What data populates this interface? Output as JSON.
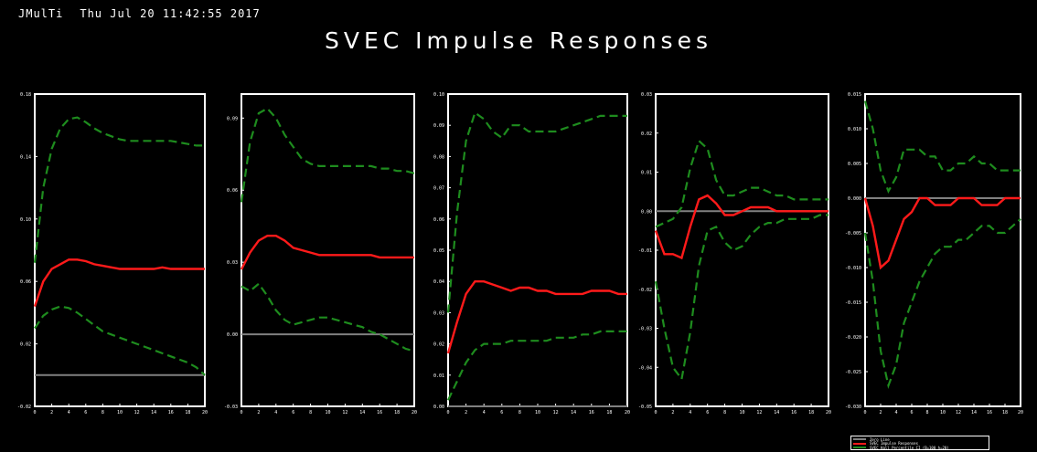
{
  "header": {
    "app": "JMulTi",
    "timestamp": "Thu Jul 20 11:42:55 2017"
  },
  "title": "SVEC Impulse Responses",
  "colors": {
    "background": "#000000",
    "frame": "#ffffff",
    "zero_line": "#808080",
    "response": "#ff1a1a",
    "ci": "#1e8c1e"
  },
  "legend": {
    "items": [
      {
        "label": "Zero Line",
        "color": "#808080"
      },
      {
        "label": "SVEC Impulse Responses",
        "color": "#ff1a1a"
      },
      {
        "label": "SVEC Hall Percentile CI (B=100 h=20)",
        "color": "#1e8c1e"
      }
    ]
  },
  "chart_data": [
    {
      "type": "line",
      "title": "",
      "x": [
        0,
        1,
        2,
        3,
        4,
        5,
        6,
        7,
        8,
        9,
        10,
        11,
        12,
        13,
        14,
        15,
        16,
        17,
        18,
        19,
        20
      ],
      "xticks": [
        "0",
        "2",
        "4",
        "6",
        "8",
        "10",
        "12",
        "14",
        "16",
        "18",
        "20"
      ],
      "ylim": [
        -0.02,
        0.18
      ],
      "yticks": [
        "-0.02",
        "0.02",
        "0.06",
        "0.10",
        "0.14",
        "0.18"
      ],
      "yticks_values": [
        -0.02,
        0.02,
        0.06,
        0.1,
        0.14,
        0.18
      ],
      "zero_line": 0,
      "response": [
        0.044,
        0.06,
        0.068,
        0.071,
        0.074,
        0.074,
        0.073,
        0.071,
        0.07,
        0.069,
        0.068,
        0.068,
        0.068,
        0.068,
        0.068,
        0.069,
        0.068,
        0.068,
        0.068,
        0.068,
        0.068
      ],
      "ci_lower": [
        0.03,
        0.038,
        0.042,
        0.044,
        0.043,
        0.04,
        0.036,
        0.032,
        0.028,
        0.026,
        0.024,
        0.022,
        0.02,
        0.018,
        0.016,
        0.014,
        0.012,
        0.01,
        0.008,
        0.005,
        0.0
      ],
      "ci_upper": [
        0.072,
        0.12,
        0.145,
        0.158,
        0.164,
        0.165,
        0.162,
        0.158,
        0.155,
        0.153,
        0.151,
        0.15,
        0.15,
        0.15,
        0.15,
        0.15,
        0.15,
        0.149,
        0.148,
        0.147,
        0.147
      ]
    },
    {
      "type": "line",
      "title": "",
      "x": [
        0,
        1,
        2,
        3,
        4,
        5,
        6,
        7,
        8,
        9,
        10,
        11,
        12,
        13,
        14,
        15,
        16,
        17,
        18,
        19,
        20
      ],
      "xticks": [
        "0",
        "2",
        "4",
        "6",
        "8",
        "10",
        "12",
        "14",
        "16",
        "18",
        "20"
      ],
      "ylim": [
        -0.03,
        0.1
      ],
      "yticks": [
        "-0.03",
        "0.00",
        "0.03",
        "0.06",
        "0.09"
      ],
      "yticks_values": [
        -0.03,
        0.0,
        0.03,
        0.06,
        0.09
      ],
      "zero_line": 0,
      "response": [
        0.027,
        0.034,
        0.039,
        0.041,
        0.041,
        0.039,
        0.036,
        0.035,
        0.034,
        0.033,
        0.033,
        0.033,
        0.033,
        0.033,
        0.033,
        0.033,
        0.032,
        0.032,
        0.032,
        0.032,
        0.032
      ],
      "ci_lower": [
        0.02,
        0.018,
        0.021,
        0.016,
        0.01,
        0.006,
        0.004,
        0.005,
        0.006,
        0.007,
        0.007,
        0.006,
        0.005,
        0.004,
        0.003,
        0.001,
        0.0,
        -0.002,
        -0.004,
        -0.006,
        -0.007
      ],
      "ci_upper": [
        0.055,
        0.08,
        0.092,
        0.094,
        0.09,
        0.083,
        0.078,
        0.073,
        0.071,
        0.07,
        0.07,
        0.07,
        0.07,
        0.07,
        0.07,
        0.07,
        0.069,
        0.069,
        0.068,
        0.068,
        0.067
      ]
    },
    {
      "type": "line",
      "title": "",
      "x": [
        0,
        1,
        2,
        3,
        4,
        5,
        6,
        7,
        8,
        9,
        10,
        11,
        12,
        13,
        14,
        15,
        16,
        17,
        18,
        19,
        20
      ],
      "xticks": [
        "0",
        "2",
        "4",
        "6",
        "8",
        "10",
        "12",
        "14",
        "16",
        "18",
        "20"
      ],
      "ylim": [
        0.0,
        0.1
      ],
      "yticks": [
        "0.00",
        "0.01",
        "0.02",
        "0.03",
        "0.04",
        "0.05",
        "0.06",
        "0.07",
        "0.08",
        "0.09",
        "0.10"
      ],
      "yticks_values": [
        0.0,
        0.01,
        0.02,
        0.03,
        0.04,
        0.05,
        0.06,
        0.07,
        0.08,
        0.09,
        0.1
      ],
      "zero_line": 0,
      "response": [
        0.017,
        0.027,
        0.036,
        0.04,
        0.04,
        0.039,
        0.038,
        0.037,
        0.038,
        0.038,
        0.037,
        0.037,
        0.036,
        0.036,
        0.036,
        0.036,
        0.037,
        0.037,
        0.037,
        0.036,
        0.036
      ],
      "ci_lower": [
        0.002,
        0.008,
        0.014,
        0.018,
        0.02,
        0.02,
        0.02,
        0.021,
        0.021,
        0.021,
        0.021,
        0.021,
        0.022,
        0.022,
        0.022,
        0.023,
        0.023,
        0.024,
        0.024,
        0.024,
        0.024
      ],
      "ci_upper": [
        0.03,
        0.062,
        0.085,
        0.094,
        0.092,
        0.088,
        0.086,
        0.09,
        0.09,
        0.088,
        0.088,
        0.088,
        0.088,
        0.089,
        0.09,
        0.091,
        0.092,
        0.093,
        0.093,
        0.093,
        0.093
      ]
    },
    {
      "type": "line",
      "title": "",
      "x": [
        0,
        1,
        2,
        3,
        4,
        5,
        6,
        7,
        8,
        9,
        10,
        11,
        12,
        13,
        14,
        15,
        16,
        17,
        18,
        19,
        20
      ],
      "xticks": [
        "0",
        "2",
        "4",
        "6",
        "8",
        "10",
        "12",
        "14",
        "16",
        "18",
        "20"
      ],
      "ylim": [
        -0.05,
        0.03
      ],
      "yticks": [
        "-0.05",
        "-0.04",
        "-0.03",
        "-0.02",
        "-0.01",
        "0.00",
        "0.01",
        "0.02",
        "0.03"
      ],
      "yticks_values": [
        -0.05,
        -0.04,
        -0.03,
        -0.02,
        -0.01,
        0.0,
        0.01,
        0.02,
        0.03
      ],
      "zero_line": 0,
      "response": [
        -0.005,
        -0.011,
        -0.011,
        -0.012,
        -0.004,
        0.003,
        0.004,
        0.002,
        -0.001,
        -0.001,
        0.0,
        0.001,
        0.001,
        0.001,
        0.0,
        0.0,
        0.0,
        0.0,
        0.0,
        0.0,
        0.0
      ],
      "ci_lower": [
        -0.018,
        -0.03,
        -0.04,
        -0.043,
        -0.031,
        -0.014,
        -0.005,
        -0.004,
        -0.008,
        -0.01,
        -0.009,
        -0.006,
        -0.004,
        -0.003,
        -0.003,
        -0.002,
        -0.002,
        -0.002,
        -0.002,
        -0.001,
        -0.001
      ],
      "ci_upper": [
        -0.004,
        -0.003,
        -0.002,
        0.001,
        0.011,
        0.018,
        0.016,
        0.008,
        0.004,
        0.004,
        0.005,
        0.006,
        0.006,
        0.005,
        0.004,
        0.004,
        0.003,
        0.003,
        0.003,
        0.003,
        0.003
      ]
    },
    {
      "type": "line",
      "title": "",
      "x": [
        0,
        1,
        2,
        3,
        4,
        5,
        6,
        7,
        8,
        9,
        10,
        11,
        12,
        13,
        14,
        15,
        16,
        17,
        18,
        19,
        20
      ],
      "xticks": [
        "0",
        "2",
        "4",
        "6",
        "8",
        "10",
        "12",
        "14",
        "16",
        "18",
        "20"
      ],
      "ylim": [
        -0.03,
        0.015
      ],
      "yticks": [
        "-0.030",
        "-0.025",
        "-0.020",
        "-0.015",
        "-0.010",
        "-0.005",
        "0.000",
        "0.005",
        "0.010",
        "0.015"
      ],
      "yticks_values": [
        -0.03,
        -0.025,
        -0.02,
        -0.015,
        -0.01,
        -0.005,
        0.0,
        0.005,
        0.01,
        0.015
      ],
      "zero_line": 0,
      "response": [
        0.0,
        -0.004,
        -0.01,
        -0.009,
        -0.006,
        -0.003,
        -0.002,
        0.0,
        0.0,
        -0.001,
        -0.001,
        -0.001,
        0.0,
        0.0,
        0.0,
        -0.001,
        -0.001,
        -0.001,
        0.0,
        0.0,
        0.0
      ],
      "ci_lower": [
        -0.005,
        -0.012,
        -0.022,
        -0.027,
        -0.024,
        -0.018,
        -0.015,
        -0.012,
        -0.01,
        -0.008,
        -0.007,
        -0.007,
        -0.006,
        -0.006,
        -0.005,
        -0.004,
        -0.004,
        -0.005,
        -0.005,
        -0.004,
        -0.003
      ],
      "ci_upper": [
        0.014,
        0.01,
        0.004,
        0.001,
        0.003,
        0.007,
        0.007,
        0.007,
        0.006,
        0.006,
        0.004,
        0.004,
        0.005,
        0.005,
        0.006,
        0.005,
        0.005,
        0.004,
        0.004,
        0.004,
        0.004
      ]
    }
  ]
}
